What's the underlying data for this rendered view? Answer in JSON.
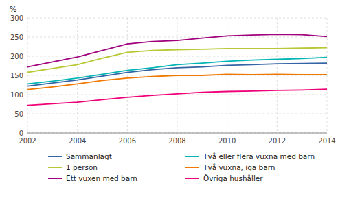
{
  "chart_data": {
    "type": "line",
    "ylabel": "%",
    "x": [
      2002,
      2003,
      2004,
      2005,
      2006,
      2007,
      2008,
      2009,
      2010,
      2011,
      2012,
      2013,
      2014
    ],
    "series": [
      {
        "name": "Sammanlagt",
        "color": "#3564A5",
        "values": [
          122,
          130,
          138,
          148,
          158,
          165,
          170,
          172,
          176,
          178,
          180,
          181,
          182
        ]
      },
      {
        "name": "1 person",
        "color": "#B8C832",
        "values": [
          158,
          168,
          178,
          195,
          210,
          215,
          217,
          218,
          220,
          220,
          220,
          221,
          222
        ]
      },
      {
        "name": "Ett vuxen med barn",
        "color": "#A0007C",
        "values": [
          172,
          185,
          198,
          215,
          232,
          238,
          241,
          247,
          253,
          255,
          257,
          256,
          251
        ]
      },
      {
        "name": "Två eller flera vuxna med barn",
        "color": "#00B4B4",
        "values": [
          128,
          135,
          143,
          153,
          163,
          170,
          178,
          182,
          187,
          190,
          192,
          194,
          197
        ]
      },
      {
        "name": "Två vuxna, iga barn",
        "color": "#F07800",
        "values": [
          113,
          120,
          128,
          137,
          143,
          147,
          150,
          150,
          153,
          152,
          153,
          152,
          152
        ]
      },
      {
        "name": "Övriga hushåller",
        "color": "#F00078",
        "values": [
          72,
          76,
          80,
          87,
          93,
          98,
          102,
          106,
          108,
          109,
          111,
          112,
          114
        ]
      }
    ],
    "xlim": [
      2002,
      2014
    ],
    "xticks": [
      2002,
      2004,
      2006,
      2008,
      2010,
      2012,
      2014
    ],
    "ylim": [
      0,
      300
    ],
    "yticks": [
      0,
      50,
      100,
      150,
      200,
      250,
      300
    ],
    "grid": true,
    "legend": "bottom"
  }
}
